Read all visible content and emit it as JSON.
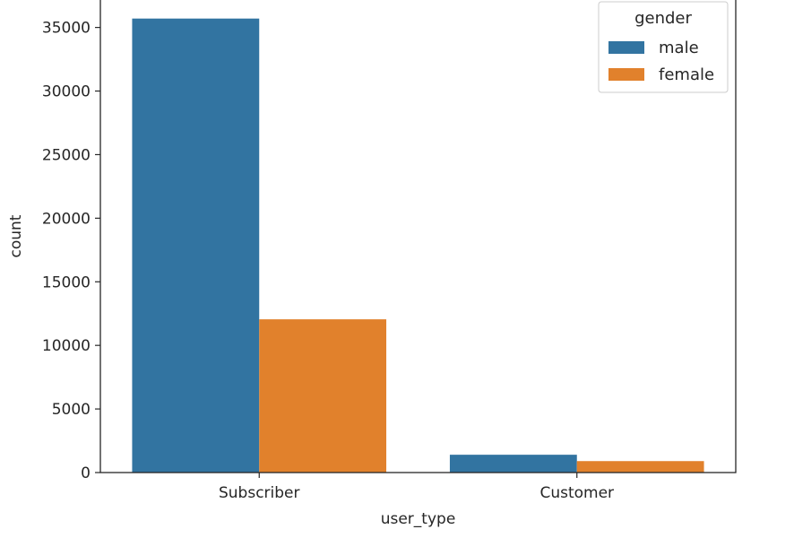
{
  "chart_data": {
    "type": "bar",
    "title": "",
    "xlabel": "user_type",
    "ylabel": "count",
    "categories": [
      "Subscriber",
      "Customer"
    ],
    "series": [
      {
        "name": "male",
        "color": "#3274a1",
        "values": [
          35700,
          1400
        ]
      },
      {
        "name": "female",
        "color": "#e1812c",
        "values": [
          12050,
          900
        ]
      }
    ],
    "yticks": [
      0,
      5000,
      10000,
      15000,
      20000,
      25000,
      30000,
      35000
    ],
    "ylim": [
      0,
      37300
    ],
    "legend": {
      "title": "gender",
      "placement": "top-right"
    },
    "grid": false
  }
}
